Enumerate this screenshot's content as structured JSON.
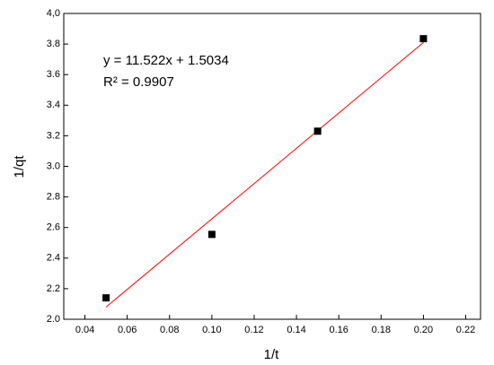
{
  "chart_data": {
    "type": "scatter",
    "x_label": "1/t",
    "y_label": "1/qt",
    "annotations": [
      "y = 11.522x + 1.5034",
      "R² = 0.9907"
    ],
    "x": [
      0.05,
      0.1,
      0.15,
      0.2
    ],
    "values": [
      2.14,
      2.555,
      3.23,
      3.835
    ],
    "color": "#000000",
    "fit": {
      "x": [
        0.05,
        0.2
      ],
      "values": [
        2.08,
        3.81
      ],
      "color": "#ff0000"
    },
    "xlim": [
      0.03,
      0.227
    ],
    "xticks": [
      0.04,
      0.06,
      0.08,
      {
        "value": 0.1,
        "label": "0.10"
      },
      0.12,
      0.14,
      0.16,
      0.18,
      {
        "value": 0.2,
        "label": "0.20"
      },
      0.22
    ],
    "ylim": [
      2,
      4
    ],
    "yticks": [
      {
        "value": 2,
        "label": "2.0"
      },
      {
        "value": 2.2,
        "label": "2.2"
      },
      {
        "value": 2.4,
        "label": "2.4"
      },
      {
        "value": 2.6,
        "label": "2.6"
      },
      {
        "value": 2.8,
        "label": "2.8"
      },
      {
        "value": 3,
        "label": "3.0"
      },
      {
        "value": 3.2,
        "label": "3.2"
      },
      {
        "value": 3.4,
        "label": "3.4"
      },
      {
        "value": 3.6,
        "label": "3.6"
      },
      {
        "value": 3.8,
        "label": "3.8"
      },
      {
        "value": 4,
        "label": "4,0"
      }
    ]
  }
}
